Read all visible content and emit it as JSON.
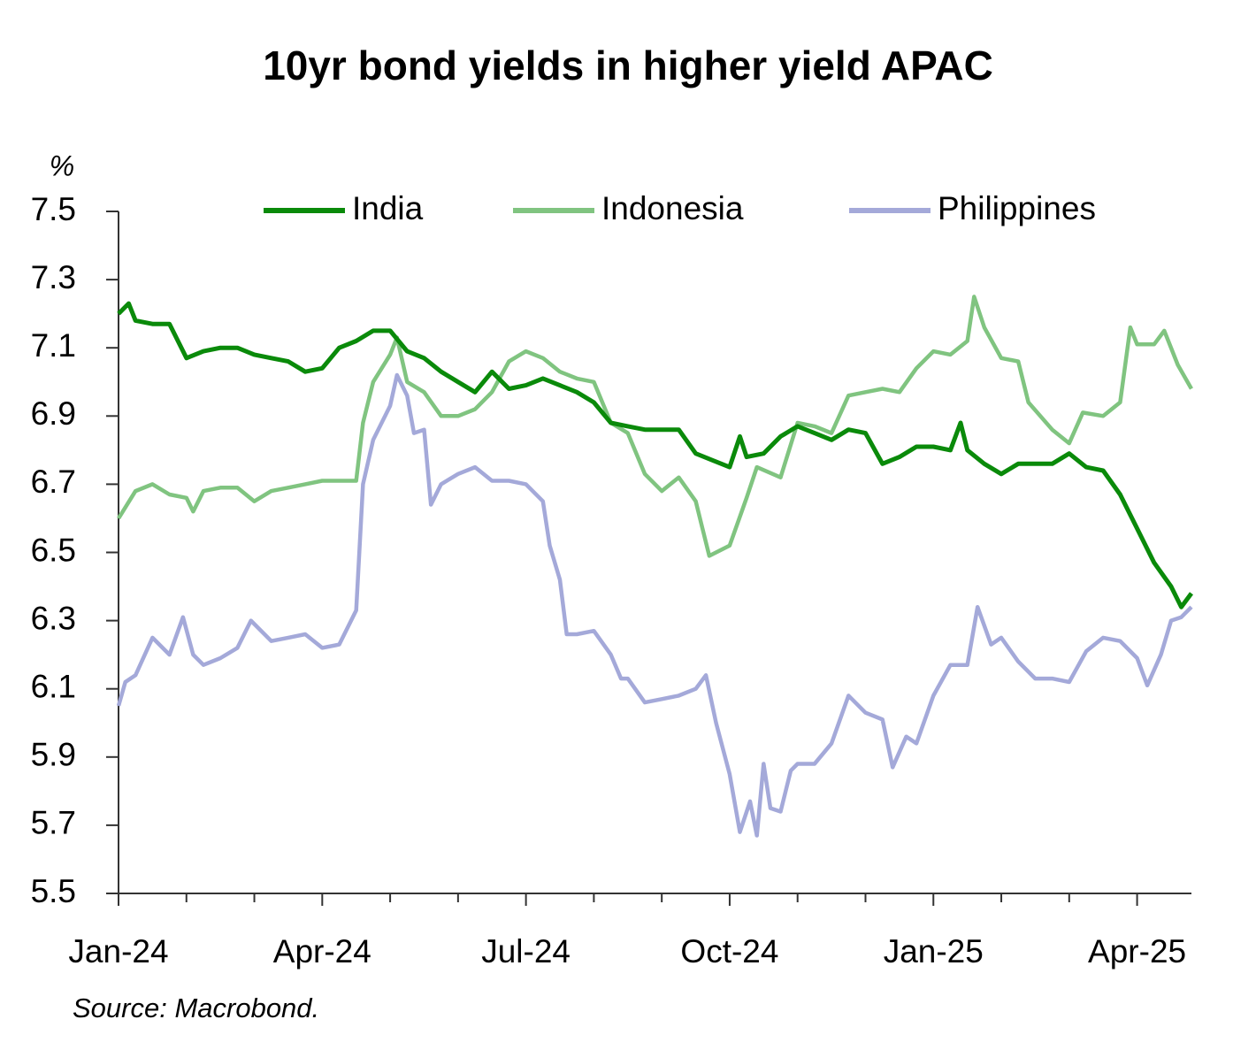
{
  "chart_data": {
    "type": "line",
    "title": "10yr bond yields in higher yield APAC",
    "y_label": "%",
    "source": "Source: Macrobond.",
    "xlim": [
      0,
      15.8
    ],
    "xticks": [
      {
        "value": 0,
        "label": "Jan-24"
      },
      {
        "value": 3,
        "label": "Apr-24"
      },
      {
        "value": 6,
        "label": "Jul-24"
      },
      {
        "value": 9,
        "label": "Oct-24"
      },
      {
        "value": 12,
        "label": "Jan-25"
      },
      {
        "value": 15,
        "label": "Apr-25"
      }
    ],
    "x_minor_ticks": [
      1,
      2,
      4,
      5,
      7,
      8,
      10,
      11,
      13,
      14
    ],
    "ylim": [
      5.5,
      7.5
    ],
    "yticks": [
      5.5,
      5.7,
      5.9,
      6.1,
      6.3,
      6.5,
      6.7,
      6.9,
      7.1,
      7.3,
      7.5
    ],
    "grid": false,
    "legend": "top",
    "series": [
      {
        "name": "India",
        "color": "#0a8a0a",
        "x": [
          0,
          0.15,
          0.25,
          0.5,
          0.75,
          1.0,
          1.25,
          1.5,
          1.75,
          2.0,
          2.25,
          2.5,
          2.75,
          3.0,
          3.25,
          3.5,
          3.75,
          4.0,
          4.25,
          4.5,
          4.75,
          5.0,
          5.25,
          5.5,
          5.75,
          6.0,
          6.25,
          6.5,
          6.75,
          7.0,
          7.25,
          7.5,
          7.75,
          8.0,
          8.25,
          8.5,
          8.75,
          9.0,
          9.15,
          9.25,
          9.5,
          9.75,
          10.0,
          10.25,
          10.5,
          10.75,
          11.0,
          11.25,
          11.5,
          11.75,
          12.0,
          12.25,
          12.4,
          12.5,
          12.75,
          13.0,
          13.25,
          13.5,
          13.75,
          14.0,
          14.25,
          14.5,
          14.75,
          15.0,
          15.25,
          15.5,
          15.65,
          15.8
        ],
        "values": [
          7.2,
          7.23,
          7.18,
          7.17,
          7.17,
          7.07,
          7.09,
          7.1,
          7.1,
          7.08,
          7.07,
          7.06,
          7.03,
          7.04,
          7.1,
          7.12,
          7.15,
          7.15,
          7.09,
          7.07,
          7.03,
          7.0,
          6.97,
          7.03,
          6.98,
          6.99,
          7.01,
          6.99,
          6.97,
          6.94,
          6.88,
          6.87,
          6.86,
          6.86,
          6.86,
          6.79,
          6.77,
          6.75,
          6.84,
          6.78,
          6.79,
          6.84,
          6.87,
          6.85,
          6.83,
          6.86,
          6.85,
          6.76,
          6.78,
          6.81,
          6.81,
          6.8,
          6.88,
          6.8,
          6.76,
          6.73,
          6.76,
          6.76,
          6.76,
          6.79,
          6.75,
          6.74,
          6.67,
          6.57,
          6.47,
          6.4,
          6.34,
          6.38
        ]
      },
      {
        "name": "Indonesia",
        "color": "#80c480",
        "x": [
          0,
          0.25,
          0.5,
          0.75,
          1.0,
          1.1,
          1.25,
          1.5,
          1.75,
          2.0,
          2.25,
          2.5,
          2.75,
          3.0,
          3.25,
          3.5,
          3.6,
          3.75,
          4.0,
          4.1,
          4.25,
          4.5,
          4.75,
          5.0,
          5.25,
          5.5,
          5.75,
          6.0,
          6.25,
          6.5,
          6.75,
          7.0,
          7.25,
          7.5,
          7.75,
          8.0,
          8.25,
          8.5,
          8.6,
          8.7,
          9.0,
          9.25,
          9.4,
          9.75,
          10.0,
          10.25,
          10.5,
          10.75,
          11.0,
          11.25,
          11.5,
          11.75,
          12.0,
          12.25,
          12.5,
          12.6,
          12.75,
          13.0,
          13.25,
          13.4,
          13.75,
          14.0,
          14.2,
          14.5,
          14.75,
          14.9,
          15.0,
          15.25,
          15.4,
          15.6,
          15.8
        ],
        "values": [
          6.6,
          6.68,
          6.7,
          6.67,
          6.66,
          6.62,
          6.68,
          6.69,
          6.69,
          6.65,
          6.68,
          6.69,
          6.7,
          6.71,
          6.71,
          6.71,
          6.88,
          7.0,
          7.08,
          7.13,
          7.0,
          6.97,
          6.9,
          6.9,
          6.92,
          6.97,
          7.06,
          7.09,
          7.07,
          7.03,
          7.01,
          7.0,
          6.88,
          6.85,
          6.73,
          6.68,
          6.72,
          6.65,
          6.57,
          6.49,
          6.52,
          6.66,
          6.75,
          6.72,
          6.88,
          6.87,
          6.85,
          6.96,
          6.97,
          6.98,
          6.97,
          7.04,
          7.09,
          7.08,
          7.12,
          7.25,
          7.16,
          7.07,
          7.06,
          6.94,
          6.86,
          6.82,
          6.91,
          6.9,
          6.94,
          7.16,
          7.11,
          7.11,
          7.15,
          7.05,
          6.98
        ]
      },
      {
        "name": "Philippines",
        "color": "#a4a9d9",
        "x": [
          0,
          0.1,
          0.25,
          0.5,
          0.75,
          0.95,
          1.1,
          1.25,
          1.5,
          1.75,
          1.95,
          2.25,
          2.5,
          2.75,
          3.0,
          3.25,
          3.5,
          3.6,
          3.75,
          4.0,
          4.1,
          4.25,
          4.35,
          4.5,
          4.6,
          4.75,
          5.0,
          5.25,
          5.5,
          5.75,
          6.0,
          6.25,
          6.35,
          6.5,
          6.6,
          6.75,
          7.0,
          7.25,
          7.4,
          7.5,
          7.75,
          8.0,
          8.25,
          8.5,
          8.65,
          8.8,
          9.0,
          9.15,
          9.3,
          9.4,
          9.5,
          9.6,
          9.75,
          9.9,
          10.0,
          10.25,
          10.5,
          10.75,
          11.0,
          11.25,
          11.4,
          11.6,
          11.75,
          12.0,
          12.25,
          12.5,
          12.65,
          12.85,
          13.0,
          13.25,
          13.5,
          13.75,
          14.0,
          14.25,
          14.5,
          14.75,
          15.0,
          15.15,
          15.35,
          15.5,
          15.65,
          15.8
        ],
        "values": [
          6.05,
          6.12,
          6.14,
          6.25,
          6.2,
          6.31,
          6.2,
          6.17,
          6.19,
          6.22,
          6.3,
          6.24,
          6.25,
          6.26,
          6.22,
          6.23,
          6.33,
          6.7,
          6.83,
          6.93,
          7.02,
          6.96,
          6.85,
          6.86,
          6.64,
          6.7,
          6.73,
          6.75,
          6.71,
          6.71,
          6.7,
          6.65,
          6.52,
          6.42,
          6.26,
          6.26,
          6.27,
          6.2,
          6.13,
          6.13,
          6.06,
          6.07,
          6.08,
          6.1,
          6.14,
          6.0,
          5.85,
          5.68,
          5.77,
          5.67,
          5.88,
          5.75,
          5.74,
          5.86,
          5.88,
          5.88,
          5.94,
          6.08,
          6.03,
          6.01,
          5.87,
          5.96,
          5.94,
          6.08,
          6.17,
          6.17,
          6.34,
          6.23,
          6.25,
          6.18,
          6.13,
          6.13,
          6.12,
          6.21,
          6.25,
          6.24,
          6.19,
          6.11,
          6.2,
          6.3,
          6.31,
          6.34
        ]
      }
    ]
  }
}
